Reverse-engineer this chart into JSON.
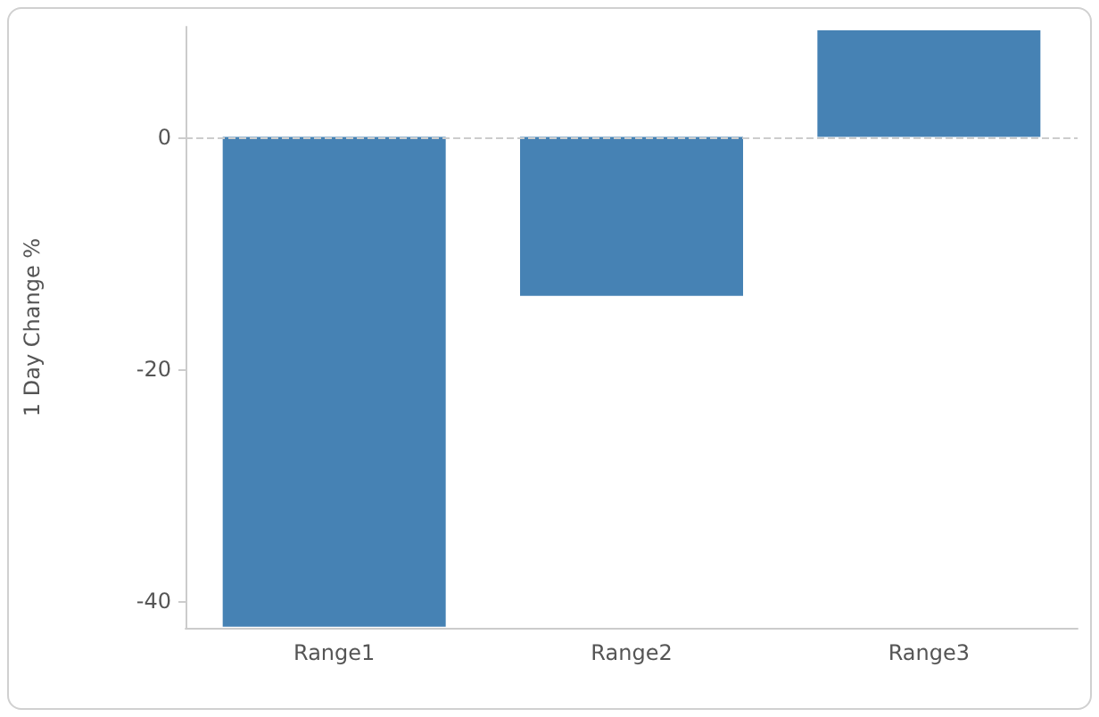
{
  "chart_data": {
    "type": "bar",
    "ylabel": "1 Day Change %",
    "categories": [
      "Range1",
      "Range2",
      "Range3"
    ],
    "values": [
      -42.2,
      -13.7,
      9.2
    ],
    "color": "#4682b4",
    "ylim": [
      -42.3,
      9.5
    ],
    "yticks": [
      -40,
      -20,
      0
    ],
    "grid": false,
    "ref_lines": [
      {
        "axis": "y",
        "value": 0,
        "label": null,
        "color": "#cccccc",
        "line_style": "dashed"
      }
    ]
  }
}
